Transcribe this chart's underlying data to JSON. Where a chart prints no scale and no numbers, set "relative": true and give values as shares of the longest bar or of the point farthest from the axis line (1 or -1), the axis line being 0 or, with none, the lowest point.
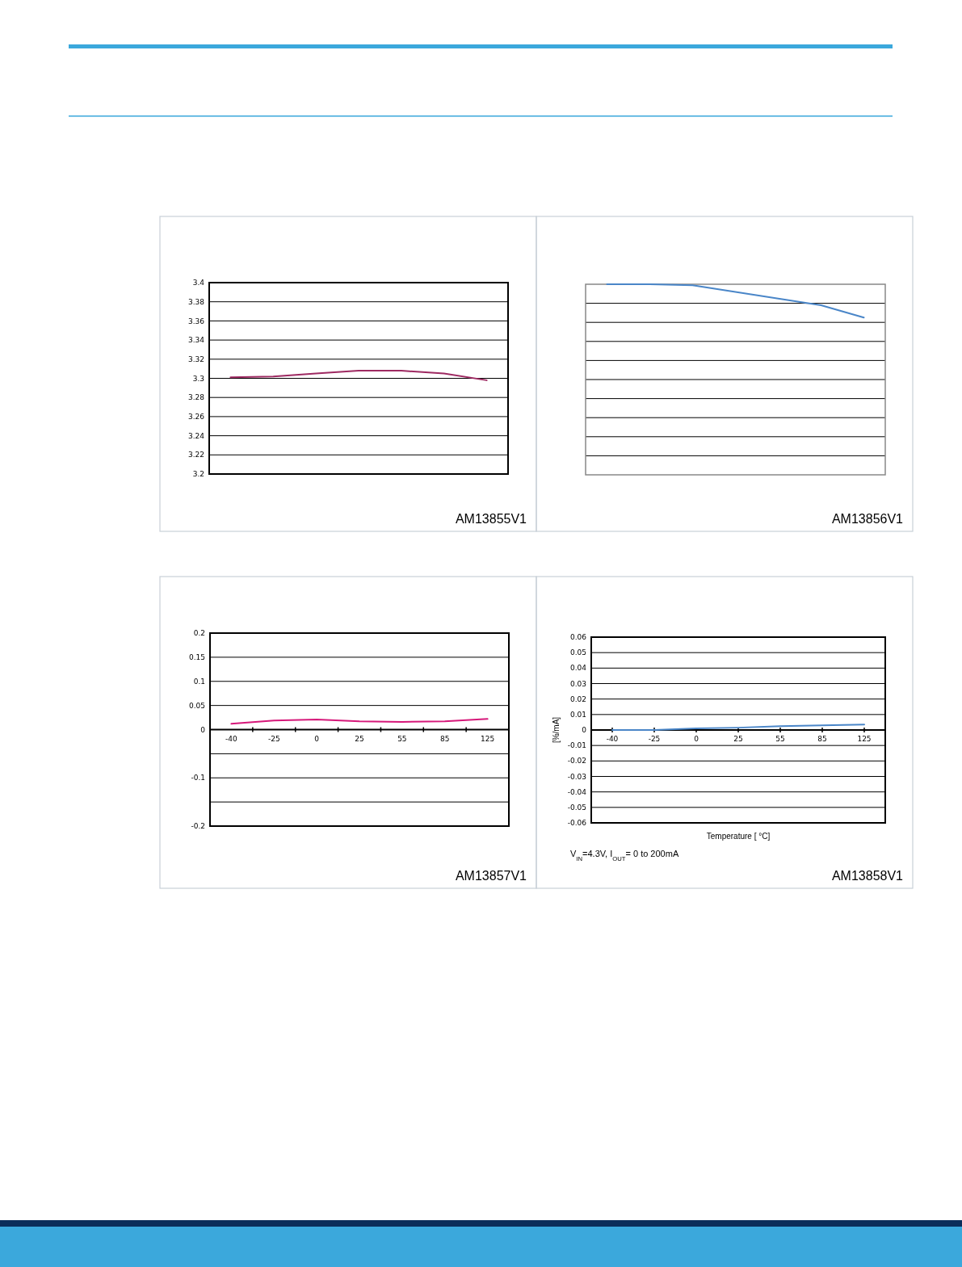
{
  "chart_data": [
    {
      "type": "line",
      "categories": [
        null,
        null,
        null,
        null,
        null,
        null,
        null
      ],
      "series": [
        {
          "color": "#9e2a62",
          "values": [
            3.301,
            3.302,
            3.305,
            3.308,
            3.308,
            3.305,
            3.298
          ]
        }
      ],
      "ylim": [
        3.2,
        3.4
      ],
      "yticks": [
        3.2,
        3.22,
        3.24,
        3.26,
        3.28,
        3.3,
        3.32,
        3.34,
        3.36,
        3.38,
        3.4
      ],
      "grid": "y",
      "annotations": [
        "AM13855V1"
      ]
    },
    {
      "type": "line",
      "relative": true,
      "categories": [
        null,
        null,
        null,
        null,
        null,
        null,
        null
      ],
      "series": [
        {
          "color": "#4a86c8",
          "values": [
            1,
            1,
            0.995,
            0.96,
            0.925,
            0.89,
            0.825
          ]
        }
      ],
      "grid": true,
      "annotations": [
        "AM13856V1"
      ]
    },
    {
      "type": "line",
      "categories": [
        "-40",
        "-25",
        "0",
        "25",
        "55",
        "85",
        "125"
      ],
      "series": [
        {
          "color": "#d6197a",
          "values": [
            0.012,
            0.019,
            0.021,
            0.017,
            0.016,
            0.017,
            0.022
          ]
        }
      ],
      "ylim": [
        -0.2,
        0.2
      ],
      "yticks": [
        -0.2,
        {
          "value": -0.15,
          "label": null
        },
        -0.1,
        {
          "value": -0.05,
          "label": null
        },
        0,
        0.05,
        0.1,
        0.15,
        0.2
      ],
      "grid": "y",
      "annotations": [
        "AM13857V1"
      ]
    },
    {
      "type": "line",
      "categories": [
        "-40",
        "-25",
        "0",
        "25",
        "55",
        "85",
        "125"
      ],
      "series": [
        {
          "color": "#4a86c8",
          "values": [
            0,
            0,
            0.001,
            0.0015,
            0.0025,
            0.003,
            0.0035
          ]
        }
      ],
      "ylim": [
        -0.06,
        0.06
      ],
      "yticks": [
        -0.06,
        -0.05,
        -0.04,
        -0.03,
        -0.02,
        -0.01,
        0,
        0.01,
        0.02,
        0.03,
        0.04,
        0.05,
        0.06
      ],
      "grid": "y",
      "ylabel": "[%/mA]",
      "xlabel": "Temperature [ °C]",
      "annotations": [
        "V$_{IN}$=4.3V, I$_{OUT}$= 0 to 200mA",
        "AM13858V1"
      ]
    }
  ]
}
